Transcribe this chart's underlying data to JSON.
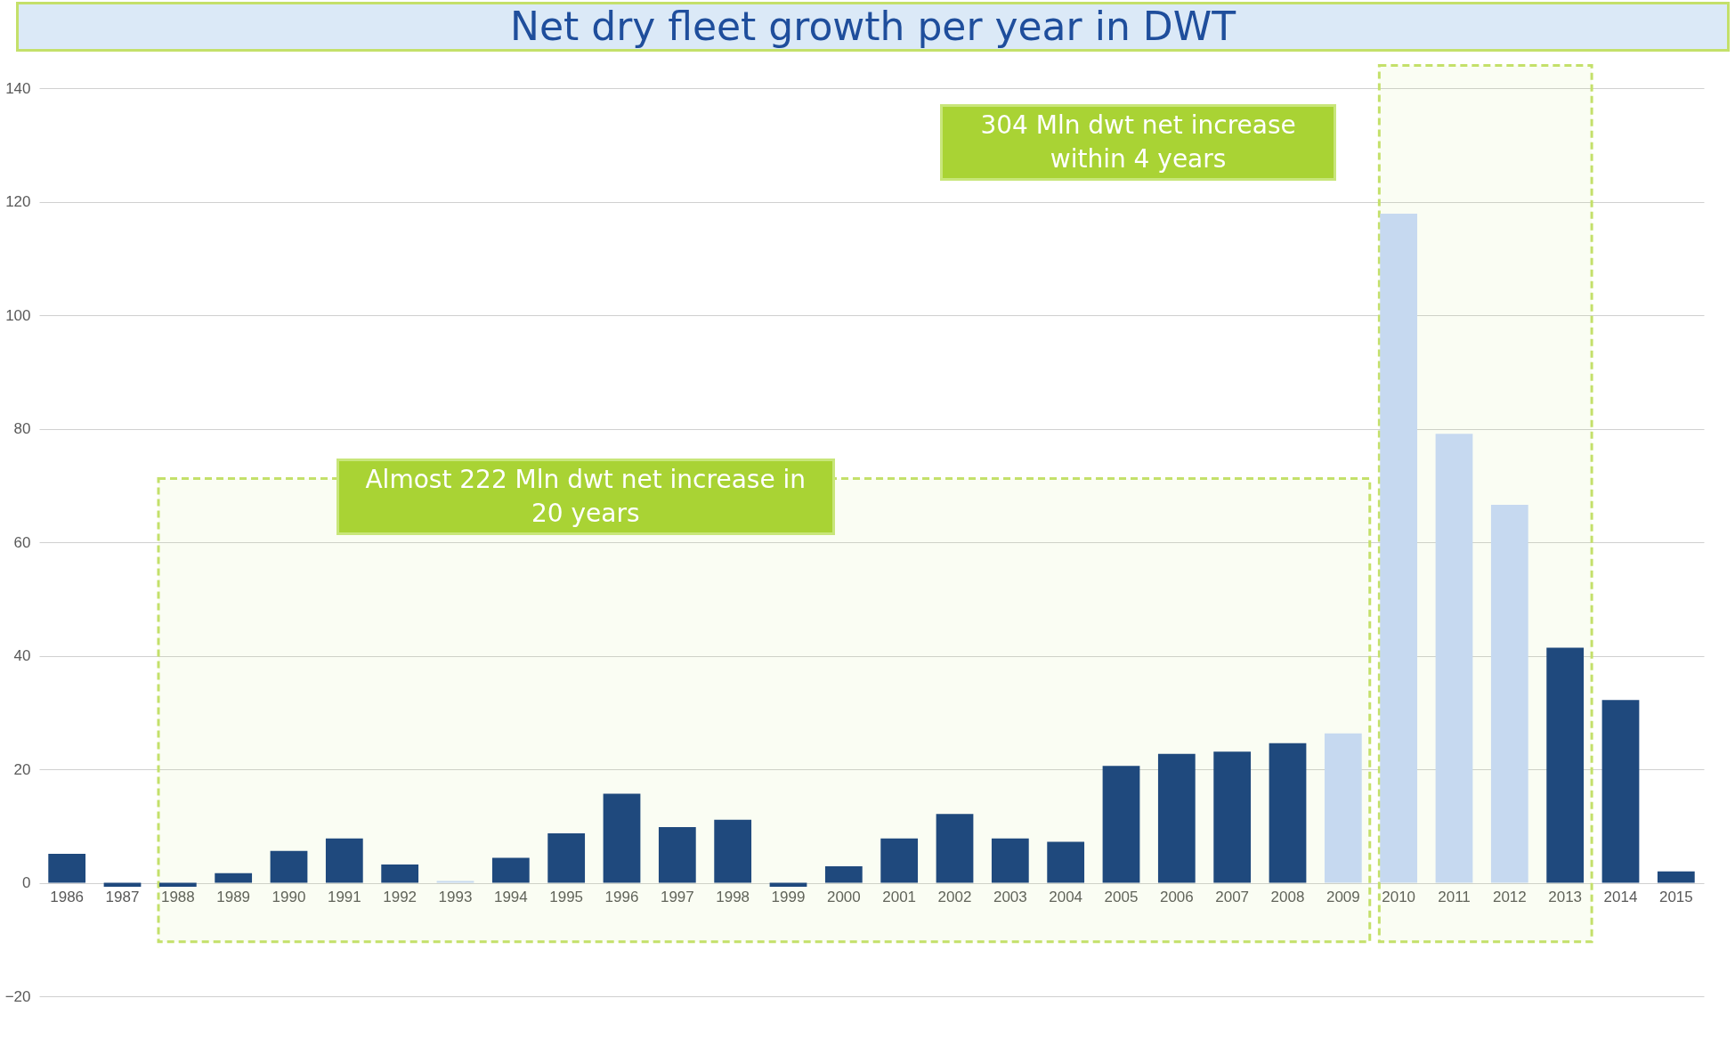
{
  "chart_data": {
    "type": "bar",
    "title": "Net dry fleet growth per year in DWT",
    "categories": [
      "1986",
      "1987",
      "1988",
      "1989",
      "1990",
      "1991",
      "1992",
      "1993",
      "1994",
      "1995",
      "1996",
      "1997",
      "1998",
      "1999",
      "2000",
      "2001",
      "2002",
      "2003",
      "2004",
      "2005",
      "2006",
      "2007",
      "2008",
      "2009",
      "2010",
      "2011",
      "2012",
      "2013",
      "2014",
      "2015"
    ],
    "values": [
      5.1,
      -0.7,
      -0.7,
      1.7,
      5.6,
      7.8,
      3.2,
      0.3,
      4.4,
      8.7,
      15.7,
      9.8,
      11.1,
      -0.7,
      2.9,
      7.8,
      12.1,
      7.8,
      7.2,
      20.6,
      22.7,
      23.1,
      24.6,
      26.3,
      117.9,
      79.1,
      66.6,
      41.4,
      32.2,
      2.0
    ],
    "colors": [
      "#1f497d",
      "#1f497d",
      "#1f497d",
      "#1f497d",
      "#1f497d",
      "#1f497d",
      "#1f497d",
      "#c6d9f0",
      "#1f497d",
      "#1f497d",
      "#1f497d",
      "#1f497d",
      "#1f497d",
      "#1f497d",
      "#1f497d",
      "#1f497d",
      "#1f497d",
      "#1f497d",
      "#1f497d",
      "#1f497d",
      "#1f497d",
      "#1f497d",
      "#1f497d",
      "#c6d9f0",
      "#c6d9f0",
      "#c6d9f0",
      "#c6d9f0",
      "#1f497d",
      "#1f497d",
      "#1f497d"
    ],
    "ylim": [
      -20,
      140
    ],
    "yticks": [
      -20,
      0,
      20,
      40,
      60,
      80,
      100,
      120,
      140
    ],
    "grid": "y",
    "annotations": [
      "Almost 222 Mln dwt net increase in 20 years",
      "304 Mln dwt net increase within 4 years"
    ],
    "bands": [
      {
        "axis": "x",
        "from": "1988",
        "to": "2009",
        "color": "#c4e06a"
      },
      {
        "axis": "x",
        "from": "2010",
        "to": "2013",
        "color": "#c4e06a"
      }
    ]
  }
}
